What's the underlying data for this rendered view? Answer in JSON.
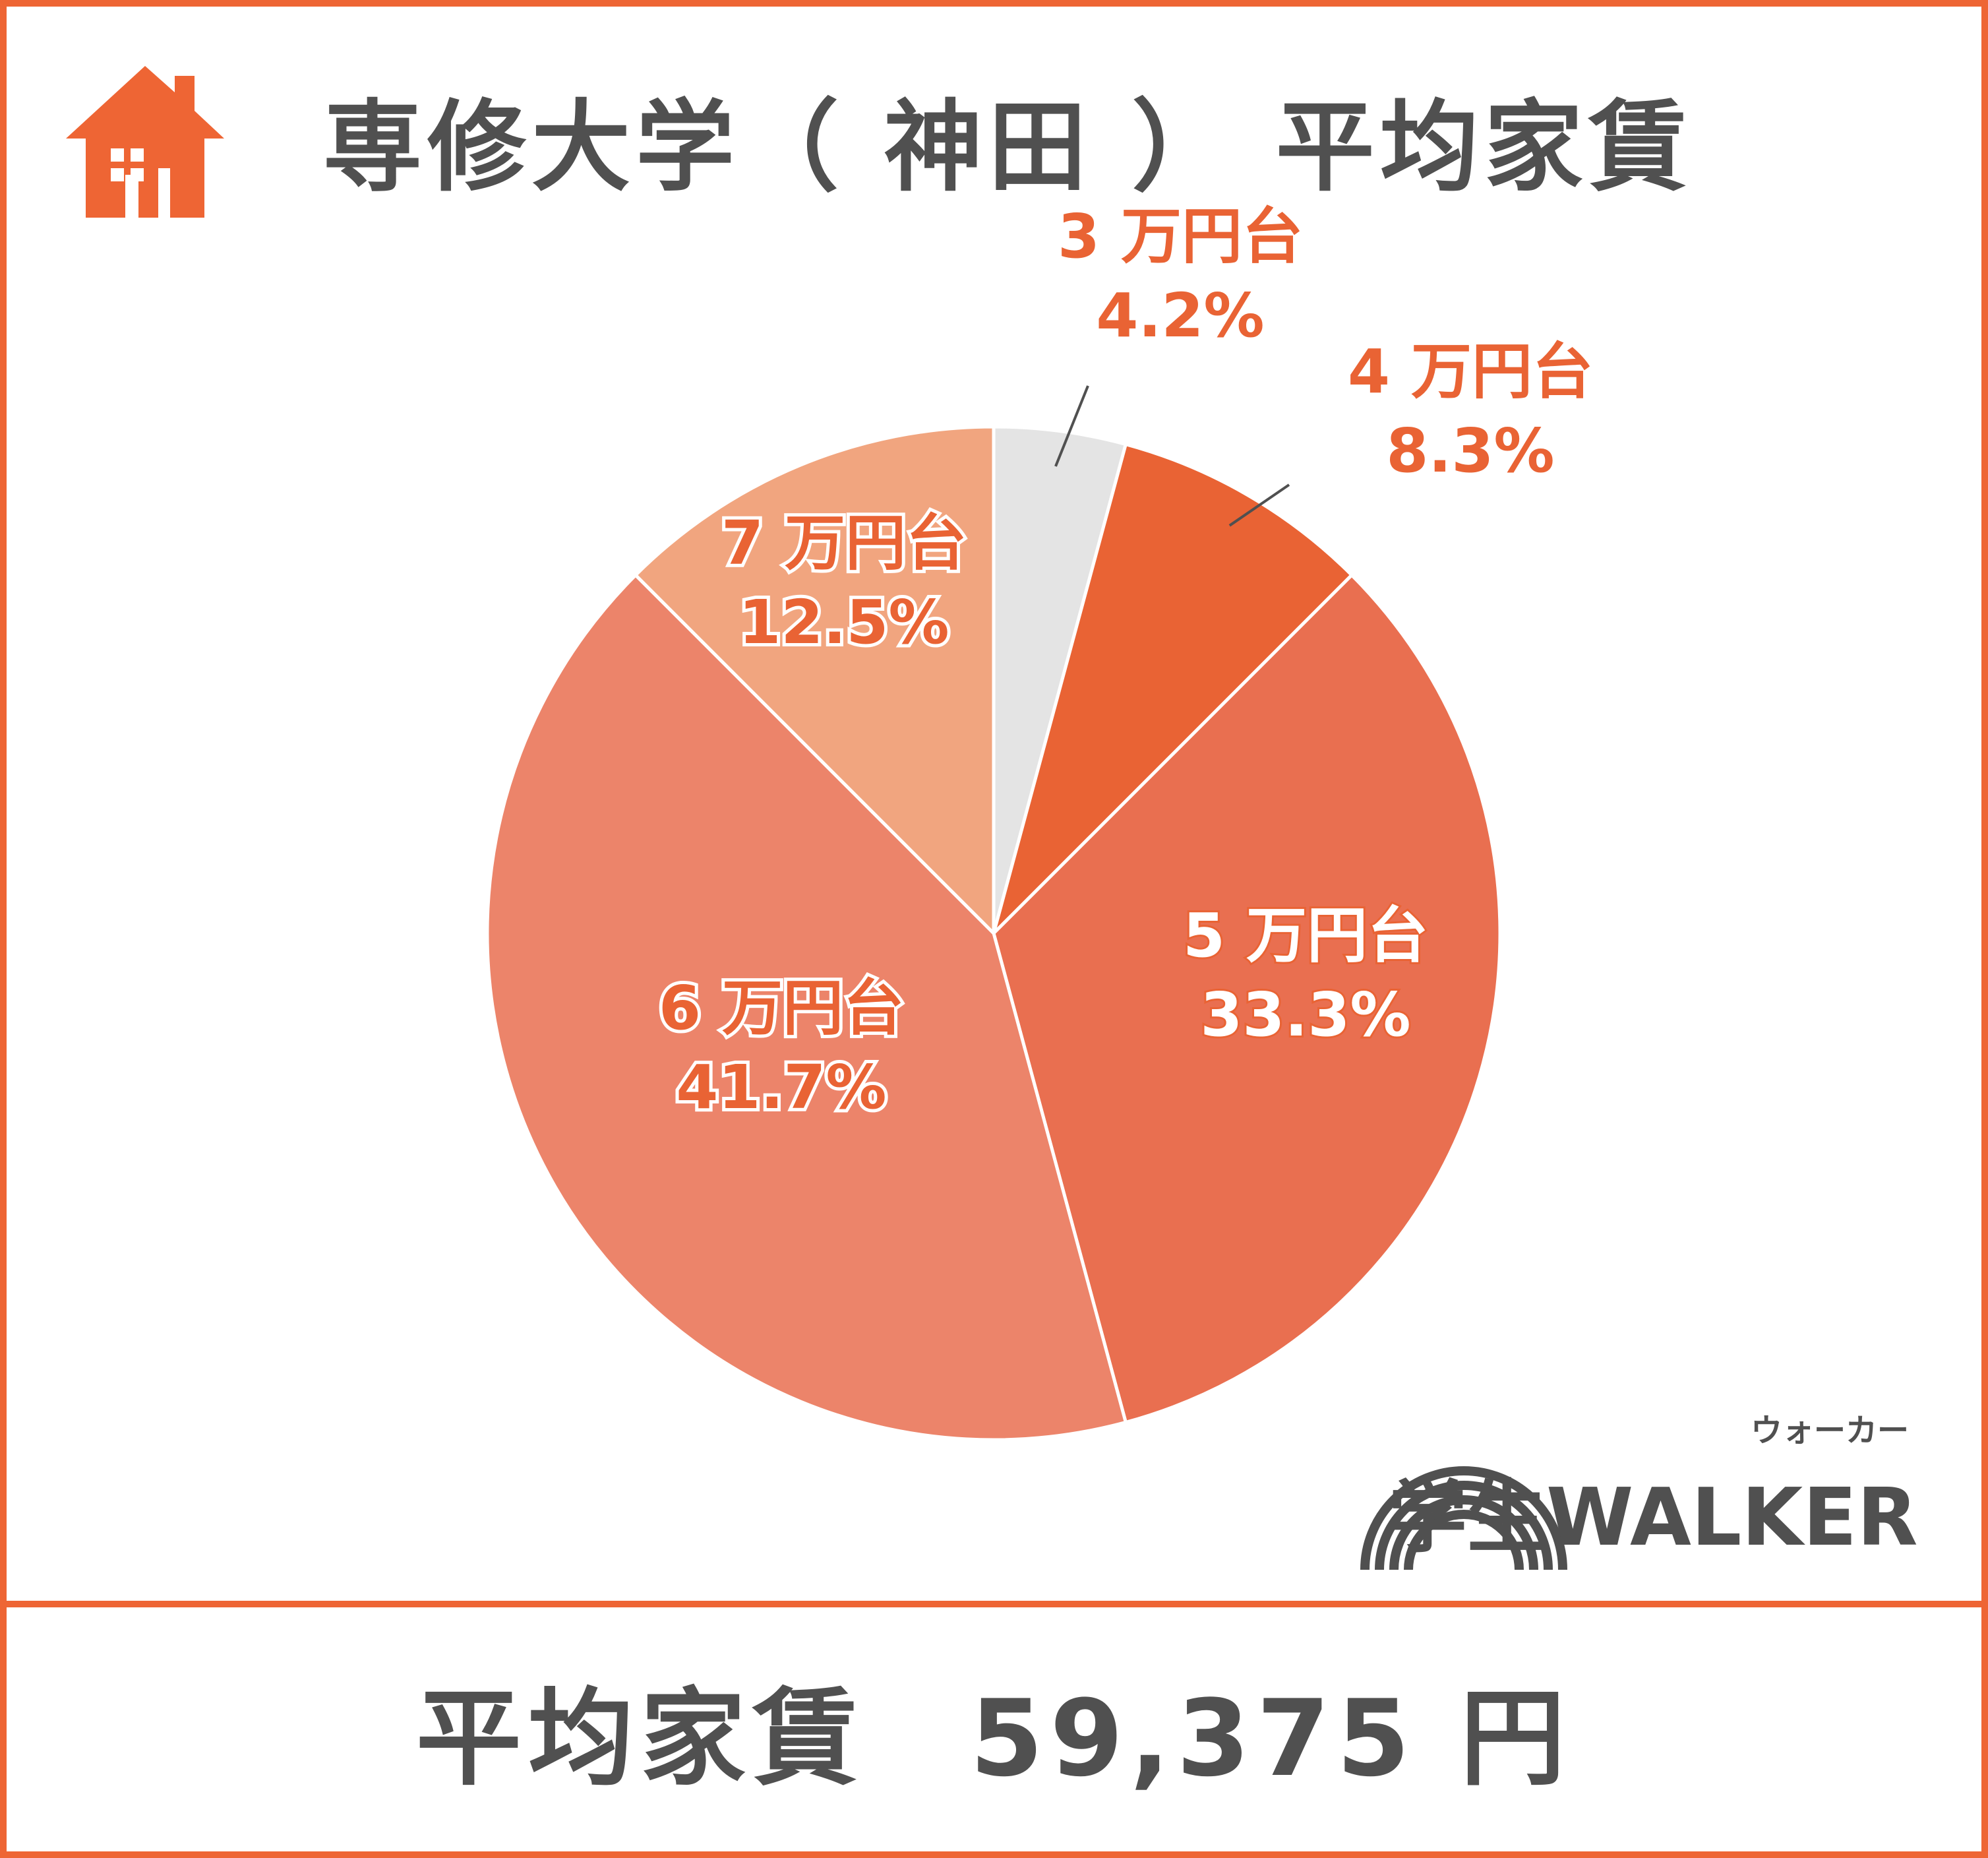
{
  "title": "専修大学（ 神田 ） 平均家賃",
  "chart_data": {
    "type": "pie",
    "title": "専修大学（ 神田 ） 平均家賃",
    "slices": [
      {
        "label": "3 万円台",
        "value": 4.2,
        "value_label": "4.2%",
        "color": "#E4E4E4"
      },
      {
        "label": "4 万円台",
        "value": 8.3,
        "value_label": "8.3%",
        "color": "#E96334"
      },
      {
        "label": "5 万円台",
        "value": 33.3,
        "value_label": "33.3%",
        "color": "#E96F50"
      },
      {
        "label": "6 万円台",
        "value": 41.7,
        "value_label": "41.7%",
        "color": "#EC846A"
      },
      {
        "label": "7 万円台",
        "value": 12.5,
        "value_label": "12.5%",
        "color": "#F1A57F"
      }
    ],
    "start_angle": "top (12 o'clock)",
    "direction": "clockwise"
  },
  "footer": {
    "label": "平均家賃",
    "value": "59,375 円"
  },
  "logo": {
    "main": "学生WALKER",
    "ruby": "ウォーカー"
  },
  "colors": {
    "accent": "#EE6534",
    "text": "#505050",
    "label_outside": "#E96334",
    "label_inside": "#FFFFFF"
  }
}
